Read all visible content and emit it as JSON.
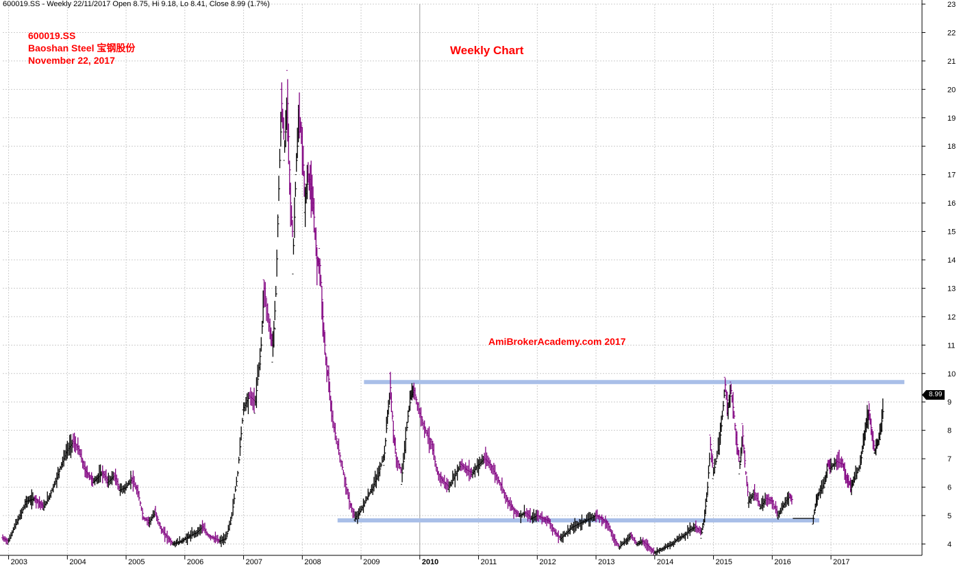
{
  "header": {
    "text": "600019.SS - Weekly 22/11/2017 Open 8.75, Hi 9.18, Lo 8.41, Close 8.99 (1.7%)"
  },
  "info": {
    "symbol": "600019.SS",
    "name": "Baoshan Steel 宝钢股份",
    "date": "November 22, 2017"
  },
  "chart_title": "Weekly Chart",
  "watermark": "AmiBrokerAcademy.com  2017",
  "last_price_label": "8.99",
  "colors": {
    "bar_up": "#000000",
    "bar_down": "#800080",
    "support_resistance": "#a9bfe8",
    "text_accent": "#ff0000",
    "grid": "#cccccc"
  },
  "chart_data": {
    "type": "line",
    "style": "ohlc-weekly-bars",
    "grid": true,
    "ylim": [
      3.6,
      23
    ],
    "yticks": [
      4,
      5,
      6,
      7,
      8,
      9,
      10,
      11,
      12,
      13,
      14,
      15,
      16,
      17,
      18,
      19,
      20,
      21,
      22,
      23
    ],
    "xlim": [
      2002.9,
      2018.55
    ],
    "xticks": [
      {
        "label": "2003",
        "x": 2003,
        "bold": false
      },
      {
        "label": "2004",
        "x": 2004,
        "bold": false
      },
      {
        "label": "2005",
        "x": 2005,
        "bold": false
      },
      {
        "label": "2006",
        "x": 2006,
        "bold": false
      },
      {
        "label": "2007",
        "x": 2007,
        "bold": false
      },
      {
        "label": "2008",
        "x": 2008,
        "bold": false
      },
      {
        "label": "2009",
        "x": 2009,
        "bold": false
      },
      {
        "label": "2010",
        "x": 2010,
        "bold": true
      },
      {
        "label": "2011",
        "x": 2011,
        "bold": false
      },
      {
        "label": "2012",
        "x": 2012,
        "bold": false
      },
      {
        "label": "2013",
        "x": 2013,
        "bold": false
      },
      {
        "label": "2014",
        "x": 2014,
        "bold": false
      },
      {
        "label": "2015",
        "x": 2015,
        "bold": false
      },
      {
        "label": "2016",
        "x": 2016,
        "bold": false
      },
      {
        "label": "2017",
        "x": 2017,
        "bold": false
      }
    ],
    "series": [
      {
        "values": [
          [
            2002.9,
            4.2
          ],
          [
            2003.0,
            4.1
          ],
          [
            2003.1,
            4.6
          ],
          [
            2003.2,
            5.0
          ],
          [
            2003.3,
            5.5
          ],
          [
            2003.45,
            5.6
          ],
          [
            2003.6,
            5.3
          ],
          [
            2003.7,
            5.7
          ],
          [
            2003.8,
            6.2
          ],
          [
            2003.9,
            6.8
          ],
          [
            2004.0,
            7.3
          ],
          [
            2004.1,
            7.6
          ],
          [
            2004.2,
            7.3
          ],
          [
            2004.3,
            6.6
          ],
          [
            2004.45,
            6.2
          ],
          [
            2004.6,
            6.5
          ],
          [
            2004.7,
            6.2
          ],
          [
            2004.8,
            6.4
          ],
          [
            2004.9,
            5.9
          ],
          [
            2005.0,
            6.0
          ],
          [
            2005.1,
            6.3
          ],
          [
            2005.2,
            5.8
          ],
          [
            2005.3,
            4.9
          ],
          [
            2005.4,
            4.8
          ],
          [
            2005.5,
            5.1
          ],
          [
            2005.6,
            4.5
          ],
          [
            2005.8,
            4.0
          ],
          [
            2005.95,
            4.1
          ],
          [
            2006.1,
            4.3
          ],
          [
            2006.2,
            4.4
          ],
          [
            2006.3,
            4.6
          ],
          [
            2006.4,
            4.3
          ],
          [
            2006.5,
            4.2
          ],
          [
            2006.6,
            4.1
          ],
          [
            2006.7,
            4.2
          ],
          [
            2006.8,
            5.0
          ],
          [
            2006.9,
            6.5
          ],
          [
            2007.0,
            8.8
          ],
          [
            2007.1,
            9.2
          ],
          [
            2007.2,
            9.0
          ],
          [
            2007.3,
            11.0
          ],
          [
            2007.35,
            13.0
          ],
          [
            2007.45,
            11.5
          ],
          [
            2007.5,
            11.0
          ],
          [
            2007.55,
            12.8
          ],
          [
            2007.6,
            16.5
          ],
          [
            2007.65,
            19.5
          ],
          [
            2007.7,
            18.0
          ],
          [
            2007.75,
            19.5
          ],
          [
            2007.8,
            16.0
          ],
          [
            2007.85,
            14.5
          ],
          [
            2007.9,
            17.5
          ],
          [
            2007.95,
            19.0
          ],
          [
            2008.0,
            18.0
          ],
          [
            2008.05,
            16.0
          ],
          [
            2008.1,
            17.0
          ],
          [
            2008.15,
            16.5
          ],
          [
            2008.2,
            15.5
          ],
          [
            2008.25,
            14.0
          ],
          [
            2008.3,
            13.8
          ],
          [
            2008.35,
            12.0
          ],
          [
            2008.4,
            10.5
          ],
          [
            2008.45,
            9.8
          ],
          [
            2008.5,
            8.5
          ],
          [
            2008.6,
            7.5
          ],
          [
            2008.7,
            6.5
          ],
          [
            2008.8,
            5.5
          ],
          [
            2008.9,
            4.9
          ],
          [
            2009.0,
            5.2
          ],
          [
            2009.1,
            5.6
          ],
          [
            2009.2,
            6.0
          ],
          [
            2009.3,
            6.5
          ],
          [
            2009.4,
            7.2
          ],
          [
            2009.45,
            8.5
          ],
          [
            2009.5,
            9.5
          ],
          [
            2009.55,
            8.0
          ],
          [
            2009.6,
            7.0
          ],
          [
            2009.7,
            6.5
          ],
          [
            2009.8,
            8.5
          ],
          [
            2009.85,
            9.2
          ],
          [
            2009.9,
            9.4
          ],
          [
            2010.0,
            8.6
          ],
          [
            2010.1,
            8.0
          ],
          [
            2010.2,
            7.5
          ],
          [
            2010.3,
            6.5
          ],
          [
            2010.4,
            6.2
          ],
          [
            2010.5,
            6.0
          ],
          [
            2010.6,
            6.4
          ],
          [
            2010.7,
            6.8
          ],
          [
            2010.8,
            6.6
          ],
          [
            2010.9,
            6.5
          ],
          [
            2011.0,
            6.8
          ],
          [
            2011.1,
            7.0
          ],
          [
            2011.2,
            6.8
          ],
          [
            2011.3,
            6.4
          ],
          [
            2011.4,
            6.0
          ],
          [
            2011.5,
            5.5
          ],
          [
            2011.6,
            5.2
          ],
          [
            2011.7,
            5.0
          ],
          [
            2011.8,
            5.1
          ],
          [
            2011.9,
            4.9
          ],
          [
            2012.0,
            5.0
          ],
          [
            2012.1,
            4.9
          ],
          [
            2012.2,
            4.8
          ],
          [
            2012.3,
            4.4
          ],
          [
            2012.4,
            4.2
          ],
          [
            2012.5,
            4.4
          ],
          [
            2012.6,
            4.6
          ],
          [
            2012.7,
            4.7
          ],
          [
            2012.8,
            4.8
          ],
          [
            2012.9,
            4.9
          ],
          [
            2013.0,
            5.0
          ],
          [
            2013.1,
            4.9
          ],
          [
            2013.2,
            4.7
          ],
          [
            2013.3,
            4.2
          ],
          [
            2013.4,
            3.9
          ],
          [
            2013.5,
            4.1
          ],
          [
            2013.6,
            4.3
          ],
          [
            2013.7,
            4.0
          ],
          [
            2013.8,
            4.1
          ],
          [
            2013.9,
            3.9
          ],
          [
            2014.0,
            3.7
          ],
          [
            2014.1,
            3.8
          ],
          [
            2014.2,
            3.9
          ],
          [
            2014.3,
            4.0
          ],
          [
            2014.4,
            4.2
          ],
          [
            2014.5,
            4.3
          ],
          [
            2014.6,
            4.5
          ],
          [
            2014.7,
            4.6
          ],
          [
            2014.8,
            4.4
          ],
          [
            2014.85,
            5.0
          ],
          [
            2014.9,
            6.0
          ],
          [
            2014.95,
            7.5
          ],
          [
            2015.0,
            6.5
          ],
          [
            2015.1,
            7.5
          ],
          [
            2015.15,
            8.5
          ],
          [
            2015.2,
            9.6
          ],
          [
            2015.25,
            8.8
          ],
          [
            2015.3,
            9.4
          ],
          [
            2015.35,
            8.5
          ],
          [
            2015.4,
            7.5
          ],
          [
            2015.45,
            6.8
          ],
          [
            2015.5,
            7.8
          ],
          [
            2015.55,
            6.5
          ],
          [
            2015.6,
            5.5
          ],
          [
            2015.7,
            5.8
          ],
          [
            2015.8,
            5.3
          ],
          [
            2015.9,
            5.6
          ],
          [
            2016.0,
            5.5
          ],
          [
            2016.1,
            5.0
          ],
          [
            2016.2,
            5.4
          ],
          [
            2016.3,
            5.7
          ],
          [
            2016.35,
            5.5
          ]
        ]
      },
      {
        "values": [
          [
            2016.7,
            4.9
          ],
          [
            2016.75,
            5.5
          ],
          [
            2016.8,
            5.8
          ],
          [
            2016.9,
            6.2
          ],
          [
            2016.95,
            6.8
          ],
          [
            2017.0,
            6.7
          ],
          [
            2017.1,
            6.9
          ],
          [
            2017.2,
            6.8
          ],
          [
            2017.25,
            6.4
          ],
          [
            2017.3,
            6.2
          ],
          [
            2017.35,
            6.0
          ],
          [
            2017.4,
            6.3
          ],
          [
            2017.5,
            6.8
          ],
          [
            2017.55,
            7.5
          ],
          [
            2017.6,
            8.2
          ],
          [
            2017.65,
            8.7
          ],
          [
            2017.7,
            7.8
          ],
          [
            2017.75,
            7.3
          ],
          [
            2017.8,
            7.6
          ],
          [
            2017.85,
            8.0
          ],
          [
            2017.9,
            8.99
          ]
        ]
      }
    ],
    "lines": [
      {
        "y": 9.7,
        "x_start": 2009.05,
        "x_end": 2018.25
      },
      {
        "y": 4.83,
        "x_start": 2008.6,
        "x_end": 2016.8
      },
      {
        "y": 4.83,
        "x_start": 2016.4,
        "x_end": 2016.8
      }
    ]
  }
}
